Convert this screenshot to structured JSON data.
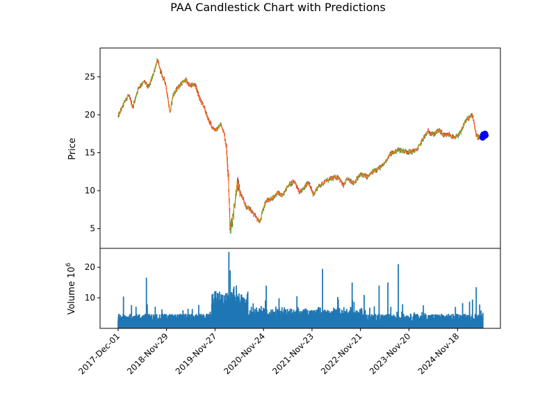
{
  "chart_data": {
    "type": "candlestick",
    "title": "PAA Candlestick Chart with Predictions",
    "price_panel": {
      "ylabel": "Price",
      "ylim": [
        2.4,
        28.8
      ],
      "yticks": [
        5,
        10,
        15,
        20,
        25
      ],
      "candle_colors": {
        "up": "#2ca02c",
        "down": "#d62728",
        "close_line": "#ff7f0e"
      },
      "anchors": [
        [
          "2017-12-01",
          19.8
        ],
        [
          "2017-12-20",
          20.6
        ],
        [
          "2018-01-20",
          21.8
        ],
        [
          "2018-02-15",
          22.6
        ],
        [
          "2018-03-20",
          21.0
        ],
        [
          "2018-05-01",
          23.6
        ],
        [
          "2018-06-15",
          24.4
        ],
        [
          "2018-07-15",
          23.6
        ],
        [
          "2018-08-15",
          25.0
        ],
        [
          "2018-09-20",
          27.2
        ],
        [
          "2018-10-20",
          25.4
        ],
        [
          "2018-11-20",
          24.2
        ],
        [
          "2018-12-24",
          20.2
        ],
        [
          "2019-01-15",
          22.6
        ],
        [
          "2019-03-01",
          23.8
        ],
        [
          "2019-04-20",
          24.6
        ],
        [
          "2019-05-20",
          23.8
        ],
        [
          "2019-07-01",
          24.0
        ],
        [
          "2019-08-01",
          22.2
        ],
        [
          "2019-09-01",
          21.2
        ],
        [
          "2019-10-01",
          19.6
        ],
        [
          "2019-11-10",
          18.2
        ],
        [
          "2019-12-10",
          18.0
        ],
        [
          "2020-01-10",
          18.8
        ],
        [
          "2020-02-01",
          17.6
        ],
        [
          "2020-02-20",
          15.6
        ],
        [
          "2020-03-05",
          12.0
        ],
        [
          "2020-03-18",
          4.9
        ],
        [
          "2020-03-25",
          5.2
        ],
        [
          "2020-04-20",
          8.0
        ],
        [
          "2020-05-10",
          10.9
        ],
        [
          "2020-06-10",
          9.4
        ],
        [
          "2020-07-15",
          7.9
        ],
        [
          "2020-08-15",
          7.6
        ],
        [
          "2020-09-15",
          6.8
        ],
        [
          "2020-10-28",
          5.8
        ],
        [
          "2020-11-15",
          7.2
        ],
        [
          "2020-12-10",
          8.6
        ],
        [
          "2021-01-10",
          8.8
        ],
        [
          "2021-02-10",
          9.2
        ],
        [
          "2021-03-10",
          9.8
        ],
        [
          "2021-04-10",
          9.3
        ],
        [
          "2021-06-01",
          10.8
        ],
        [
          "2021-07-15",
          11.2
        ],
        [
          "2021-08-20",
          9.8
        ],
        [
          "2021-09-20",
          10.2
        ],
        [
          "2021-10-25",
          11.2
        ],
        [
          "2021-12-01",
          9.5
        ],
        [
          "2022-01-10",
          10.6
        ],
        [
          "2022-03-01",
          11.2
        ],
        [
          "2022-04-15",
          11.6
        ],
        [
          "2022-06-10",
          11.8
        ],
        [
          "2022-07-15",
          10.6
        ],
        [
          "2022-08-15",
          11.6
        ],
        [
          "2022-10-01",
          11.0
        ],
        [
          "2022-11-25",
          12.2
        ],
        [
          "2023-01-10",
          11.8
        ],
        [
          "2023-03-01",
          12.6
        ],
        [
          "2023-05-01",
          13.2
        ],
        [
          "2023-07-01",
          14.8
        ],
        [
          "2023-09-01",
          15.4
        ],
        [
          "2023-10-15",
          15.2
        ],
        [
          "2023-12-01",
          15.1
        ],
        [
          "2024-01-20",
          15.4
        ],
        [
          "2024-03-01",
          16.8
        ],
        [
          "2024-04-10",
          17.8
        ],
        [
          "2024-05-20",
          17.4
        ],
        [
          "2024-07-01",
          18.0
        ],
        [
          "2024-08-10",
          17.2
        ],
        [
          "2024-09-15",
          17.4
        ],
        [
          "2024-10-25",
          16.9
        ],
        [
          "2024-12-10",
          17.6
        ],
        [
          "2025-01-15",
          19.2
        ],
        [
          "2025-02-10",
          19.6
        ],
        [
          "2025-03-10",
          20.0
        ],
        [
          "2025-04-07",
          17.2
        ],
        [
          "2025-04-25",
          17.0
        ],
        [
          "2025-05-20",
          17.2
        ]
      ]
    },
    "predictions": {
      "color": "#0000ff",
      "points": [
        [
          "2025-05-25",
          17.0
        ],
        [
          "2025-05-31",
          17.4
        ],
        [
          "2025-06-06",
          17.2
        ],
        [
          "2025-06-12",
          17.5
        ],
        [
          "2025-06-16",
          17.3
        ]
      ]
    },
    "volume_panel": {
      "ylabel": "Volume",
      "scale_label_base": "10",
      "scale_label_exp": "6",
      "ylim": [
        0,
        26.2
      ],
      "yticks": [
        10,
        20
      ],
      "bar_color": "#1f77b4",
      "spikes": [
        [
          "2018-01-10",
          10.4
        ],
        [
          "2018-07-01",
          16.6
        ],
        [
          "2019-11-20",
          9.0
        ],
        [
          "2020-01-20",
          11.0
        ],
        [
          "2020-03-10",
          25.0
        ],
        [
          "2020-03-20",
          19.0
        ],
        [
          "2020-04-10",
          18.4
        ],
        [
          "2020-05-05",
          14.0
        ],
        [
          "2020-09-15",
          21.5
        ],
        [
          "2020-12-15",
          14.0
        ],
        [
          "2021-03-20",
          12.5
        ],
        [
          "2022-02-10",
          19.5
        ],
        [
          "2022-03-01",
          22.0
        ],
        [
          "2022-06-15",
          14.0
        ],
        [
          "2022-09-20",
          15.0
        ],
        [
          "2023-01-15",
          12.0
        ],
        [
          "2023-04-10",
          14.0
        ],
        [
          "2023-06-15",
          15.0
        ],
        [
          "2023-09-01",
          21.0
        ],
        [
          "2023-11-15",
          23.5
        ],
        [
          "2024-01-10",
          11.0
        ],
        [
          "2024-10-20",
          15.0
        ],
        [
          "2025-04-07",
          13.5
        ],
        [
          "2025-05-20",
          18.8
        ]
      ]
    },
    "x_axis": {
      "start": "2017-12-01",
      "end": "2025-05-28",
      "tick_labels": [
        "2017-Dec-01",
        "2018-Nov-29",
        "2019-Nov-27",
        "2020-Nov-24",
        "2021-Nov-23",
        "2022-Nov-21",
        "2023-Nov-20",
        "2024-Nov-18"
      ],
      "tick_dates": [
        "2017-12-01",
        "2018-11-29",
        "2019-11-27",
        "2020-11-24",
        "2021-11-23",
        "2022-11-21",
        "2023-11-20",
        "2024-11-18"
      ]
    }
  }
}
